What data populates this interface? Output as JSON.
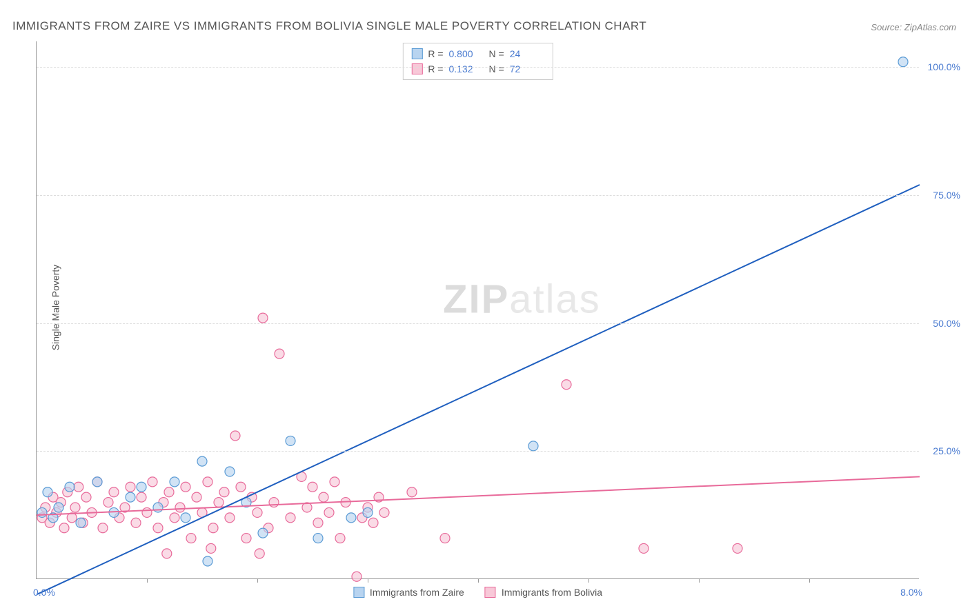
{
  "title": "IMMIGRANTS FROM ZAIRE VS IMMIGRANTS FROM BOLIVIA SINGLE MALE POVERTY CORRELATION CHART",
  "source": "Source: ZipAtlas.com",
  "ylabel": "Single Male Poverty",
  "watermark_zip": "ZIP",
  "watermark_atlas": "atlas",
  "chart": {
    "type": "scatter_correlation",
    "xlim": [
      0,
      8
    ],
    "ylim": [
      0,
      105
    ],
    "x_tick_positions": [
      1,
      2,
      3,
      4,
      5,
      6,
      7
    ],
    "y_gridlines": [
      25,
      50,
      75,
      100
    ],
    "y_tick_labels": [
      "25.0%",
      "50.0%",
      "75.0%",
      "100.0%"
    ],
    "x_min_label": "0.0%",
    "x_max_label": "8.0%",
    "background_color": "#ffffff",
    "grid_color": "#dddddd",
    "axis_color": "#999999",
    "marker_radius": 7,
    "marker_stroke_width": 1.2,
    "line_width": 2,
    "series": [
      {
        "name": "Immigrants from Zaire",
        "fill_color": "#b8d4f0",
        "stroke_color": "#5a9bd5",
        "line_color": "#1f5fbf",
        "r_value": "0.800",
        "n_value": "24",
        "regression": {
          "x1": 0,
          "y1": -3,
          "x2": 8,
          "y2": 77
        },
        "points": [
          [
            0.05,
            13
          ],
          [
            0.1,
            17
          ],
          [
            0.15,
            12
          ],
          [
            0.2,
            14
          ],
          [
            0.3,
            18
          ],
          [
            0.4,
            11
          ],
          [
            0.55,
            19
          ],
          [
            0.7,
            13
          ],
          [
            0.85,
            16
          ],
          [
            0.95,
            18
          ],
          [
            1.1,
            14
          ],
          [
            1.25,
            19
          ],
          [
            1.35,
            12
          ],
          [
            1.5,
            23
          ],
          [
            1.55,
            3.5
          ],
          [
            1.75,
            21
          ],
          [
            1.9,
            15
          ],
          [
            2.05,
            9
          ],
          [
            2.3,
            27
          ],
          [
            2.55,
            8
          ],
          [
            2.85,
            12
          ],
          [
            3.0,
            13
          ],
          [
            4.5,
            26
          ],
          [
            7.85,
            101
          ]
        ]
      },
      {
        "name": "Immigrants from Bolivia",
        "fill_color": "#f8c8d8",
        "stroke_color": "#e86a9a",
        "line_color": "#e86a9a",
        "r_value": "0.132",
        "n_value": "72",
        "regression": {
          "x1": 0,
          "y1": 12.5,
          "x2": 8,
          "y2": 20
        },
        "points": [
          [
            0.05,
            12
          ],
          [
            0.08,
            14
          ],
          [
            0.12,
            11
          ],
          [
            0.15,
            16
          ],
          [
            0.18,
            13
          ],
          [
            0.22,
            15
          ],
          [
            0.25,
            10
          ],
          [
            0.28,
            17
          ],
          [
            0.32,
            12
          ],
          [
            0.35,
            14
          ],
          [
            0.38,
            18
          ],
          [
            0.42,
            11
          ],
          [
            0.45,
            16
          ],
          [
            0.5,
            13
          ],
          [
            0.55,
            19
          ],
          [
            0.6,
            10
          ],
          [
            0.65,
            15
          ],
          [
            0.7,
            17
          ],
          [
            0.75,
            12
          ],
          [
            0.8,
            14
          ],
          [
            0.85,
            18
          ],
          [
            0.9,
            11
          ],
          [
            0.95,
            16
          ],
          [
            1.0,
            13
          ],
          [
            1.05,
            19
          ],
          [
            1.1,
            10
          ],
          [
            1.15,
            15
          ],
          [
            1.18,
            5
          ],
          [
            1.2,
            17
          ],
          [
            1.25,
            12
          ],
          [
            1.3,
            14
          ],
          [
            1.35,
            18
          ],
          [
            1.4,
            8
          ],
          [
            1.45,
            16
          ],
          [
            1.5,
            13
          ],
          [
            1.55,
            19
          ],
          [
            1.58,
            6
          ],
          [
            1.6,
            10
          ],
          [
            1.65,
            15
          ],
          [
            1.7,
            17
          ],
          [
            1.75,
            12
          ],
          [
            1.8,
            28
          ],
          [
            1.85,
            18
          ],
          [
            1.9,
            8
          ],
          [
            1.95,
            16
          ],
          [
            2.0,
            13
          ],
          [
            2.02,
            5
          ],
          [
            2.05,
            51
          ],
          [
            2.1,
            10
          ],
          [
            2.15,
            15
          ],
          [
            2.2,
            44
          ],
          [
            2.3,
            12
          ],
          [
            2.4,
            20
          ],
          [
            2.45,
            14
          ],
          [
            2.5,
            18
          ],
          [
            2.55,
            11
          ],
          [
            2.6,
            16
          ],
          [
            2.65,
            13
          ],
          [
            2.7,
            19
          ],
          [
            2.75,
            8
          ],
          [
            2.8,
            15
          ],
          [
            2.9,
            0.5
          ],
          [
            2.95,
            12
          ],
          [
            3.0,
            14
          ],
          [
            3.05,
            11
          ],
          [
            3.1,
            16
          ],
          [
            3.15,
            13
          ],
          [
            3.4,
            17
          ],
          [
            3.7,
            8
          ],
          [
            4.8,
            38
          ],
          [
            5.5,
            6
          ],
          [
            6.35,
            6
          ]
        ]
      }
    ]
  },
  "stats_legend": {
    "r_label": "R =",
    "n_label": "N ="
  },
  "bottom_legend": {
    "series1_label": "Immigrants from Zaire",
    "series2_label": "Immigrants from Bolivia"
  }
}
